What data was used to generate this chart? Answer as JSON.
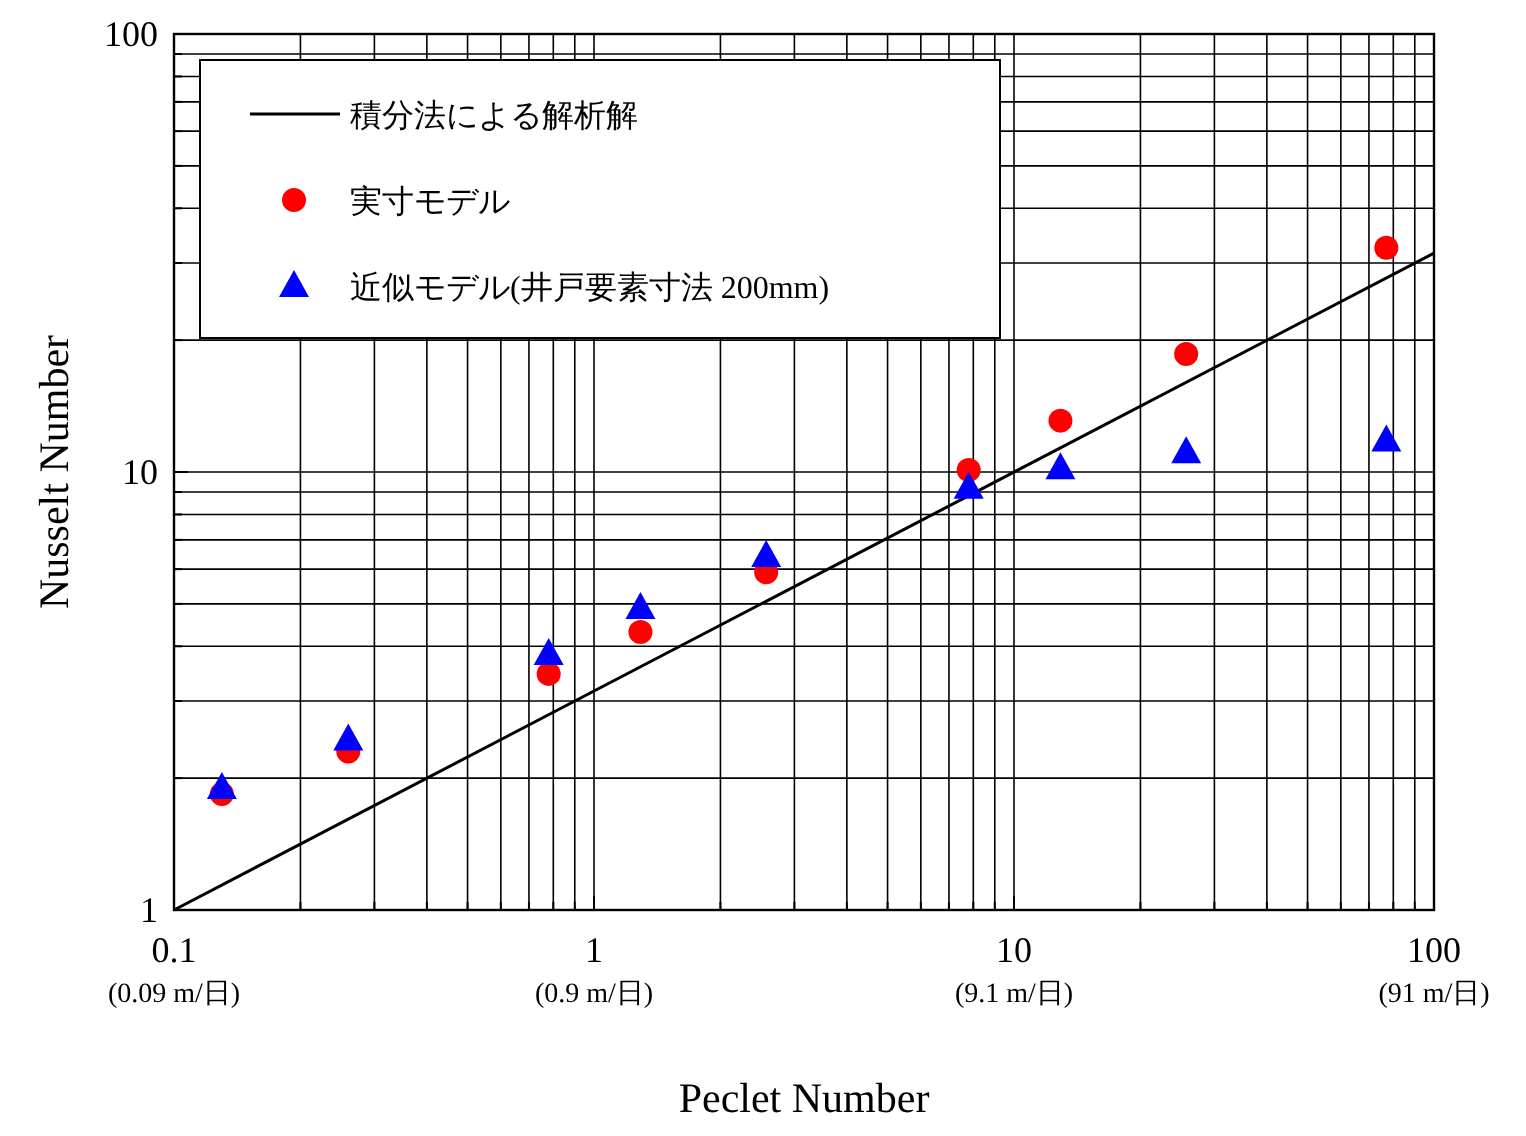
{
  "chart_data": {
    "type": "scatter",
    "xlabel": "Peclet Number",
    "ylabel": "Nusselt Number",
    "log": "xy",
    "grid": true,
    "legend": "top left",
    "xlim": [
      0.1,
      100
    ],
    "ylim": [
      1,
      100
    ],
    "annotations": [
      "(0.09 m/日)",
      "(0.9 m/日)",
      "(9.1 m/日)",
      "(91 m/日)"
    ],
    "xticks": [
      0.1,
      {
        "value": 0.2,
        "label": null
      },
      {
        "value": 0.3,
        "label": null
      },
      {
        "value": 0.4,
        "label": null
      },
      {
        "value": 0.5,
        "label": null
      },
      {
        "value": 0.6,
        "label": null
      },
      {
        "value": 0.7,
        "label": null
      },
      {
        "value": 0.8,
        "label": null
      },
      {
        "value": 0.9,
        "label": null
      },
      1,
      {
        "value": 2,
        "label": null
      },
      {
        "value": 3,
        "label": null
      },
      {
        "value": 4,
        "label": null
      },
      {
        "value": 5,
        "label": null
      },
      {
        "value": 6,
        "label": null
      },
      {
        "value": 7,
        "label": null
      },
      {
        "value": 8,
        "label": null
      },
      {
        "value": 9,
        "label": null
      },
      10,
      {
        "value": 20,
        "label": null
      },
      {
        "value": 30,
        "label": null
      },
      {
        "value": 40,
        "label": null
      },
      {
        "value": 50,
        "label": null
      },
      {
        "value": 60,
        "label": null
      },
      {
        "value": 70,
        "label": null
      },
      {
        "value": 80,
        "label": null
      },
      {
        "value": 90,
        "label": null
      },
      100
    ],
    "yticks": [
      1,
      {
        "value": 2,
        "label": null
      },
      {
        "value": 3,
        "label": null
      },
      {
        "value": 4,
        "label": null
      },
      {
        "value": 5,
        "label": null
      },
      {
        "value": 6,
        "label": null
      },
      {
        "value": 7,
        "label": null
      },
      {
        "value": 8,
        "label": null
      },
      {
        "value": 9,
        "label": null
      },
      10,
      {
        "value": 20,
        "label": null
      },
      {
        "value": 30,
        "label": null
      },
      {
        "value": 40,
        "label": null
      },
      {
        "value": 50,
        "label": null
      },
      {
        "value": 60,
        "label": null
      },
      {
        "value": 70,
        "label": null
      },
      {
        "value": 80,
        "label": null
      },
      {
        "value": 90,
        "label": null
      },
      100
    ],
    "series": [
      {
        "name": "積分法による解析解",
        "type": "line",
        "color": "#000000",
        "marker": "none",
        "line_style": "solid",
        "x": [
          0.1,
          100
        ],
        "values": [
          1,
          31.6
        ]
      },
      {
        "name": "実寸モデル",
        "color": "#ff0000",
        "marker": "circle",
        "x": [
          0.13,
          0.26,
          0.78,
          1.29,
          2.57,
          7.8,
          12.9,
          25.7,
          77
        ],
        "values": [
          1.84,
          2.3,
          3.46,
          4.31,
          5.9,
          10.1,
          13.1,
          18.6,
          32.5
        ]
      },
      {
        "name": "近似モデル(井戸要素寸法 200mm)",
        "color": "#0000ff",
        "marker": "triangle",
        "x": [
          0.13,
          0.26,
          0.78,
          1.29,
          2.57,
          7.8,
          12.9,
          25.7,
          77
        ],
        "values": [
          1.9,
          2.45,
          3.84,
          4.89,
          6.43,
          9.2,
          10.2,
          11.1,
          11.8
        ]
      }
    ]
  }
}
